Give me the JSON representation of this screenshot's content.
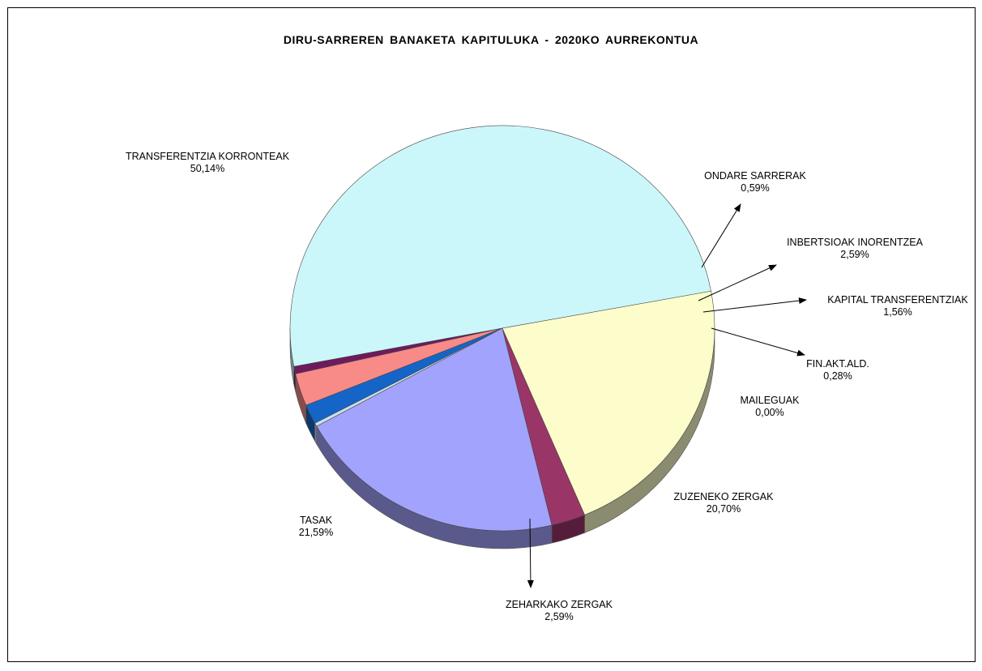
{
  "chart_data": {
    "type": "pie",
    "title": "DIRU-SARREREN BANAKETA KAPITULUKA - 2020KO AURREKONTUA",
    "slices": [
      {
        "label": "TRANSFERENTZIA KORRONTEAK",
        "value": 50.14,
        "display": "50,14%",
        "color": "#ccf7fa"
      },
      {
        "label": "ONDARE SARRERAK",
        "value": 0.59,
        "display": "0,59%",
        "color": "#6e1a5e"
      },
      {
        "label": "INBERTSIOAK INORENTZEA",
        "value": 2.59,
        "display": "2,59%",
        "color": "#f88a88"
      },
      {
        "label": "KAPITAL TRANSFERENTZIAK",
        "value": 1.56,
        "display": "1,56%",
        "color": "#1565c8"
      },
      {
        "label": "FIN.AKT.ALD.",
        "value": 0.28,
        "display": "0,28%",
        "color": "#c8dff0"
      },
      {
        "label": "MAILEGUAK",
        "value": 0.0,
        "display": "0,00%",
        "color": "#ffffff"
      },
      {
        "label": "ZUZENEKO ZERGAK",
        "value": 20.7,
        "display": "20,70%",
        "color": "#a1a3fc"
      },
      {
        "label": "ZEHARKAKO ZERGAK",
        "value": 2.59,
        "display": "2,59%",
        "color": "#9a3567"
      },
      {
        "label": "TASAK",
        "value": 21.59,
        "display": "21,59%",
        "color": "#fdfdcb"
      }
    ]
  }
}
